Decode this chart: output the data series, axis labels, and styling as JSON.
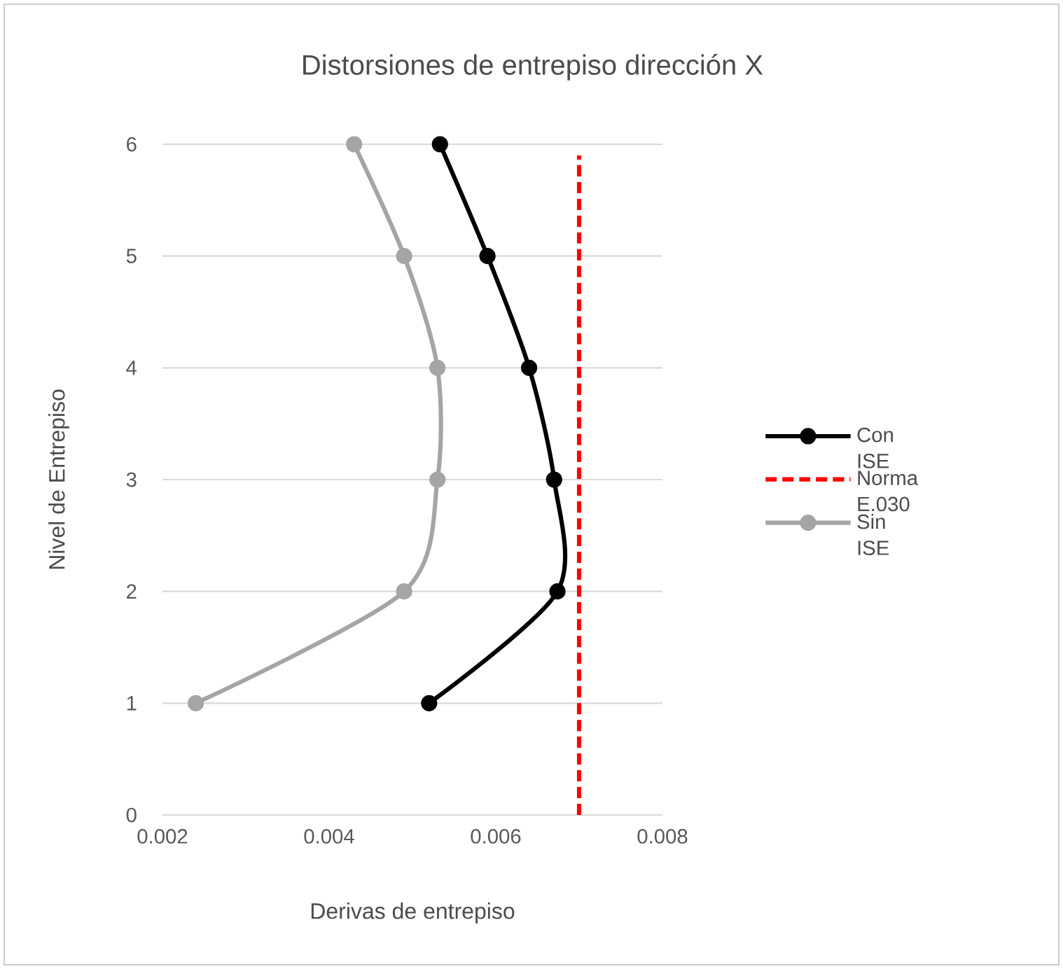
{
  "chart_data": {
    "type": "line",
    "title": "Distorsiones de entrepiso dirección X",
    "xlabel": "Derivas de entrepiso",
    "ylabel": "Nivel de Entrepiso",
    "xlim": [
      0.002,
      0.008
    ],
    "xticks": [
      0.002,
      0.004,
      0.006,
      0.008
    ],
    "ylim": [
      0,
      6
    ],
    "yticks": [
      0,
      1,
      2,
      3,
      4,
      5,
      6
    ],
    "grid": "y",
    "legend": "right",
    "series": [
      {
        "name": "Con ISE",
        "color": "#000000",
        "marker": "circle",
        "line_style": "solid",
        "x": [
          0.0052,
          0.00674,
          0.0067,
          0.0064,
          0.0059,
          0.00533
        ],
        "values": [
          1,
          2,
          3,
          4,
          5,
          6
        ]
      },
      {
        "name": "Norma E.030",
        "color": "#ff0000",
        "marker": "none",
        "line_style": "dashed",
        "x": [
          0.007,
          0.007
        ],
        "values": [
          0,
          5.9
        ]
      },
      {
        "name": "Sin ISE",
        "color": "#a5a5a5",
        "marker": "circle",
        "line_style": "solid",
        "x": [
          0.0024,
          0.0049,
          0.0053,
          0.0053,
          0.0049,
          0.0043
        ],
        "values": [
          1,
          2,
          3,
          4,
          5,
          6
        ]
      }
    ]
  }
}
